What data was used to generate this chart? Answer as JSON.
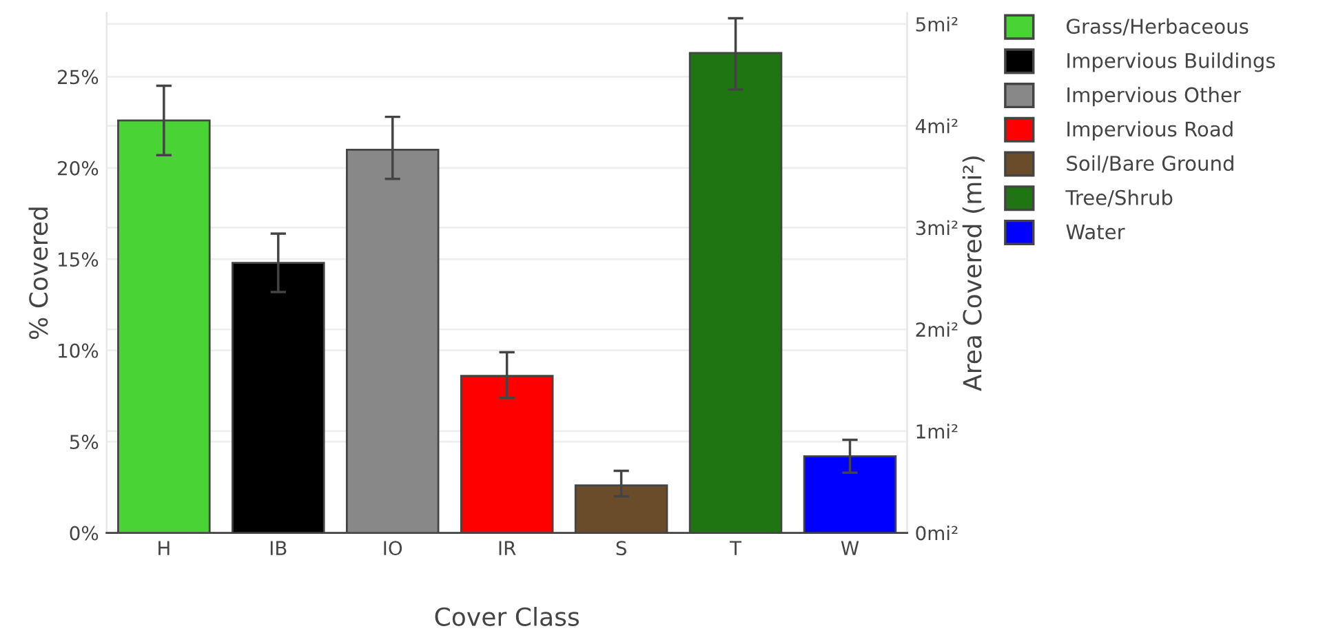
{
  "chart_data": {
    "type": "bar",
    "xlabel": "Cover Class",
    "ylabel": "% Covered",
    "y2label": "Area Covered (mi²)",
    "categories": [
      "H",
      "IB",
      "IO",
      "IR",
      "S",
      "T",
      "W"
    ],
    "series": [
      {
        "name": "Grass/Herbaceous",
        "color": "#4ad334",
        "values": [
          22.6,
          null,
          null,
          null,
          null,
          null,
          null
        ],
        "errors": [
          [
            20.7,
            24.5
          ],
          null,
          null,
          null,
          null,
          null,
          null
        ]
      },
      {
        "name": "Impervious Buildings",
        "color": "#000000",
        "values": [
          null,
          14.8,
          null,
          null,
          null,
          null,
          null
        ],
        "errors": [
          null,
          [
            13.2,
            16.4
          ],
          null,
          null,
          null,
          null,
          null
        ]
      },
      {
        "name": "Impervious Other",
        "color": "#888888",
        "values": [
          null,
          null,
          21.0,
          null,
          null,
          null,
          null
        ],
        "errors": [
          null,
          null,
          [
            19.4,
            22.8
          ],
          null,
          null,
          null,
          null
        ]
      },
      {
        "name": "Impervious Road",
        "color": "#ff0000",
        "values": [
          null,
          null,
          null,
          8.6,
          null,
          null,
          null
        ],
        "errors": [
          null,
          null,
          null,
          [
            7.4,
            9.9
          ],
          null,
          null,
          null
        ]
      },
      {
        "name": "Soil/Bare Ground",
        "color": "#6b4c2a",
        "values": [
          null,
          null,
          null,
          null,
          2.6,
          null,
          null
        ],
        "errors": [
          null,
          null,
          null,
          null,
          [
            2.0,
            3.4
          ],
          null,
          null
        ]
      },
      {
        "name": "Tree/Shrub",
        "color": "#1e7512",
        "values": [
          null,
          null,
          null,
          null,
          null,
          26.3,
          null
        ],
        "errors": [
          null,
          null,
          null,
          null,
          null,
          [
            24.3,
            28.2
          ],
          null
        ]
      },
      {
        "name": "Water",
        "color": "#0000ff",
        "values": [
          null,
          null,
          null,
          null,
          null,
          null,
          4.2
        ],
        "errors": [
          null,
          null,
          null,
          null,
          null,
          null,
          [
            3.3,
            5.1
          ]
        ]
      }
    ],
    "ylim": [
      0,
      28.5
    ],
    "yticks": [
      {
        "value": 0,
        "label": "0%"
      },
      {
        "value": 5,
        "label": "5%"
      },
      {
        "value": 10,
        "label": "10%"
      },
      {
        "value": 15,
        "label": "15%"
      },
      {
        "value": 20,
        "label": "20%"
      },
      {
        "value": 25,
        "label": "25%"
      }
    ],
    "y2lim": [
      0,
      5.11
    ],
    "y2ticks": [
      {
        "value": 0,
        "label": "0mi²"
      },
      {
        "value": 1,
        "label": "1mi²"
      },
      {
        "value": 2,
        "label": "2mi²"
      },
      {
        "value": 3,
        "label": "3mi²"
      },
      {
        "value": 4,
        "label": "4mi²"
      },
      {
        "value": 5,
        "label": "5mi²"
      }
    ],
    "grid": "y",
    "legend": "top right"
  }
}
